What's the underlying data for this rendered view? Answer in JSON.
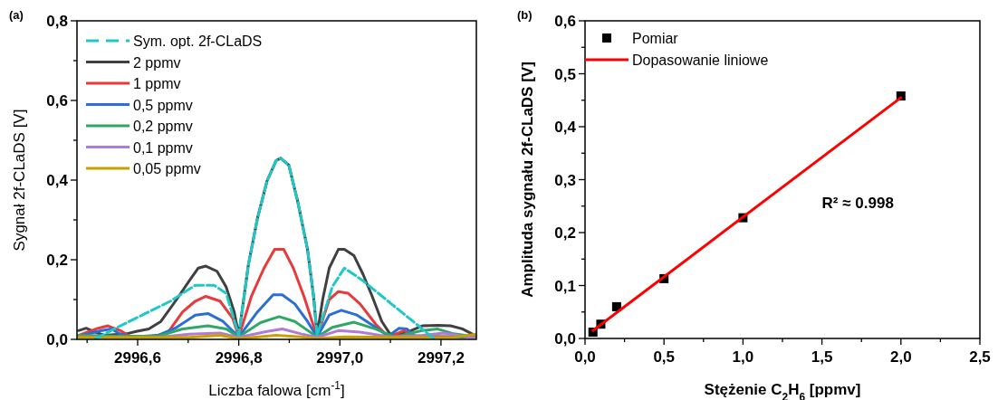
{
  "chart_data": [
    {
      "type": "line",
      "title": "(a)",
      "xlabel": "Liczba falowa [cm$^{-1}$]",
      "ylabel": "Sygnał 2f-CLaDS [V]",
      "xlim": [
        2996.48,
        2997.27
      ],
      "ylim": [
        0,
        0.8
      ],
      "xticks": [
        {
          "value": 2996.5,
          "label": null
        },
        {
          "value": 2996.6,
          "label": "2996,6"
        },
        {
          "value": 2996.7,
          "label": null
        },
        {
          "value": 2996.8,
          "label": "2996,8"
        },
        {
          "value": 2996.9,
          "label": null
        },
        {
          "value": 2997.0,
          "label": "2997,0"
        },
        {
          "value": 2997.1,
          "label": null
        },
        {
          "value": 2997.2,
          "label": "2997,2"
        }
      ],
      "yticks": [
        {
          "value": 0,
          "label": "0,0"
        },
        {
          "value": 0.1,
          "label": null
        },
        {
          "value": 0.2,
          "label": "0,2"
        },
        {
          "value": 0.3,
          "label": null
        },
        {
          "value": 0.4,
          "label": "0,4"
        },
        {
          "value": 0.5,
          "label": null
        },
        {
          "value": 0.6,
          "label": "0,6"
        },
        {
          "value": 0.7,
          "label": null
        },
        {
          "value": 0.8,
          "label": "0,8"
        }
      ],
      "legend": "top left",
      "grid": false,
      "series": [
        {
          "name": "Sym. opt. 2f-CLaDS",
          "color": "#1fc8c8",
          "line_style": "dashed",
          "x": [
            2996.517,
            2996.566,
            2996.609,
            2996.665,
            2996.714,
            2996.751,
            2996.775,
            2996.8,
            2996.819,
            2996.837,
            2996.856,
            2996.874,
            2996.883,
            2996.899,
            2996.917,
            2996.936,
            2996.948,
            2996.955,
            2996.985,
            2997.009,
            2997.046,
            2997.102,
            2997.145,
            2997.182,
            2997.188
          ],
          "values": [
            0.002,
            0.034,
            0.061,
            0.096,
            0.136,
            0.136,
            0.116,
            0.01,
            0.187,
            0.304,
            0.398,
            0.449,
            0.455,
            0.438,
            0.344,
            0.226,
            0.108,
            0.01,
            0.132,
            0.179,
            0.147,
            0.089,
            0.045,
            0.006,
            0.0
          ]
        },
        {
          "name": "2 ppmv",
          "color": "#404040",
          "x": [
            2996.483,
            2996.498,
            2996.517,
            2996.535,
            2996.578,
            2996.597,
            2996.622,
            2996.646,
            2996.677,
            2996.702,
            2996.72,
            2996.735,
            2996.757,
            2996.775,
            2996.791,
            2996.8,
            2996.819,
            2996.837,
            2996.856,
            2996.874,
            2996.883,
            2996.899,
            2996.917,
            2996.936,
            2996.948,
            2996.955,
            2996.966,
            2996.979,
            2996.997,
            2997.009,
            2997.028,
            2997.046,
            2997.064,
            2997.083,
            2997.099,
            2997.114,
            2997.133,
            2997.163,
            2997.194,
            2997.219,
            2997.243,
            2997.27
          ],
          "values": [
            0.022,
            0.028,
            0.018,
            0.01,
            0.014,
            0.02,
            0.026,
            0.045,
            0.1,
            0.147,
            0.179,
            0.184,
            0.171,
            0.132,
            0.069,
            0.01,
            0.187,
            0.304,
            0.398,
            0.449,
            0.455,
            0.438,
            0.344,
            0.226,
            0.108,
            0.01,
            0.1,
            0.179,
            0.226,
            0.226,
            0.21,
            0.163,
            0.108,
            0.045,
            0.014,
            0.01,
            0.018,
            0.034,
            0.035,
            0.034,
            0.026,
            0.008
          ]
        },
        {
          "name": "1 ppmv",
          "color": "#e83a3a",
          "x": [
            2996.483,
            2996.517,
            2996.541,
            2996.566,
            2996.584,
            2996.628,
            2996.658,
            2996.689,
            2996.714,
            2996.735,
            2996.763,
            2996.788,
            2996.8,
            2996.825,
            2996.85,
            2996.871,
            2996.889,
            2996.908,
            2996.929,
            2996.955,
            2996.979,
            2996.997,
            2997.016,
            2997.04,
            2997.071,
            2997.096,
            2997.127,
            2997.145,
            2997.27
          ],
          "values": [
            0.01,
            0.026,
            0.034,
            0.022,
            0.008,
            0.008,
            0.014,
            0.069,
            0.096,
            0.108,
            0.096,
            0.053,
            0.006,
            0.108,
            0.179,
            0.226,
            0.226,
            0.179,
            0.108,
            0.006,
            0.1,
            0.12,
            0.116,
            0.089,
            0.038,
            0.006,
            0.022,
            0.008,
            0.006
          ]
        },
        {
          "name": "0,5 ppmv",
          "color": "#2a6fd6",
          "x": [
            2996.483,
            2996.529,
            2996.548,
            2996.566,
            2996.591,
            2996.64,
            2996.677,
            2996.714,
            2996.739,
            2996.769,
            2996.8,
            2996.837,
            2996.868,
            2996.886,
            2996.911,
            2996.936,
            2996.955,
            2996.979,
            2997.003,
            2997.034,
            2997.071,
            2997.096,
            2997.117,
            2997.133,
            2997.151,
            2997.27
          ],
          "values": [
            0.008,
            0.022,
            0.026,
            0.013,
            0.006,
            0.01,
            0.03,
            0.061,
            0.065,
            0.045,
            0.006,
            0.069,
            0.112,
            0.112,
            0.089,
            0.045,
            0.006,
            0.061,
            0.073,
            0.061,
            0.03,
            0.008,
            0.028,
            0.026,
            0.006,
            0.006
          ]
        },
        {
          "name": "0,2 ppmv",
          "color": "#2fa866",
          "x": [
            2996.483,
            2996.578,
            2996.64,
            2996.689,
            2996.739,
            2996.775,
            2996.8,
            2996.843,
            2996.88,
            2996.911,
            2996.955,
            2996.985,
            2997.028,
            2997.071,
            2997.108,
            2997.163,
            2997.194,
            2997.225,
            2997.27
          ],
          "values": [
            0.01,
            0.008,
            0.008,
            0.026,
            0.034,
            0.026,
            0.006,
            0.042,
            0.057,
            0.045,
            0.006,
            0.03,
            0.043,
            0.026,
            0.006,
            0.022,
            0.026,
            0.014,
            0.006
          ]
        },
        {
          "name": "0,1 ppmv",
          "color": "#b07ad8",
          "x": [
            2996.483,
            2996.64,
            2996.702,
            2996.763,
            2996.8,
            2996.856,
            2996.886,
            2996.923,
            2996.955,
            2996.997,
            2997.04,
            2997.102,
            2997.163,
            2997.206,
            2997.256,
            2997.27
          ],
          "values": [
            0.006,
            0.005,
            0.013,
            0.016,
            0.005,
            0.02,
            0.026,
            0.014,
            0.005,
            0.022,
            0.018,
            0.006,
            0.01,
            0.016,
            0.005,
            0.005
          ]
        },
        {
          "name": "0,05 ppmv",
          "color": "#c9a000",
          "x": [
            2996.483,
            2996.702,
            2996.763,
            2996.8,
            2996.874,
            2996.923,
            2996.955,
            2997.009,
            2997.133,
            2997.225,
            2997.27
          ],
          "values": [
            0.005,
            0.005,
            0.01,
            0.002,
            0.01,
            0.006,
            0.002,
            0.006,
            0.005,
            0.005,
            0.013
          ]
        }
      ]
    },
    {
      "type": "scatter",
      "title": "(b)",
      "xlabel": "Stężenie C$_{2}$H$_{6}$  [ppmv]",
      "ylabel": "Amplituda sygnału 2f-CLaDS [V]",
      "xlim": [
        0,
        2.5
      ],
      "ylim": [
        0,
        0.6
      ],
      "xticks": [
        {
          "value": 0,
          "label": "0,0"
        },
        {
          "value": 0.25,
          "label": null
        },
        {
          "value": 0.5,
          "label": "0,5"
        },
        {
          "value": 0.75,
          "label": null
        },
        {
          "value": 1,
          "label": "1,0"
        },
        {
          "value": 1.25,
          "label": null
        },
        {
          "value": 1.5,
          "label": "1,5"
        },
        {
          "value": 1.75,
          "label": null
        },
        {
          "value": 2,
          "label": "2,0"
        },
        {
          "value": 2.25,
          "label": null
        },
        {
          "value": 2.5,
          "label": "2,5"
        }
      ],
      "yticks": [
        {
          "value": 0,
          "label": "0,0"
        },
        {
          "value": 0.05,
          "label": null
        },
        {
          "value": 0.1,
          "label": "0,1"
        },
        {
          "value": 0.15,
          "label": null
        },
        {
          "value": 0.2,
          "label": "0,2"
        },
        {
          "value": 0.25,
          "label": null
        },
        {
          "value": 0.3,
          "label": "0,3"
        },
        {
          "value": 0.35,
          "label": null
        },
        {
          "value": 0.4,
          "label": "0,4"
        },
        {
          "value": 0.45,
          "label": null
        },
        {
          "value": 0.5,
          "label": "0,5"
        },
        {
          "value": 0.55,
          "label": null
        },
        {
          "value": 0.6,
          "label": "0,6"
        }
      ],
      "legend": "top left",
      "grid": false,
      "annotations": [
        "R² ≈ 0.998"
      ],
      "series": [
        {
          "name": "Pomiar",
          "marker": "square",
          "color": "#000000",
          "x": [
            0.05,
            0.1,
            0.2,
            0.5,
            1.0,
            2.0
          ],
          "values": [
            0.012,
            0.027,
            0.06,
            0.113,
            0.228,
            0.458
          ]
        },
        {
          "name": "Dopasowanie liniowe",
          "type": "line",
          "color": "#ff0000",
          "x": [
            0.05,
            2.0
          ],
          "values": [
            0.015,
            0.455
          ]
        }
      ]
    }
  ]
}
